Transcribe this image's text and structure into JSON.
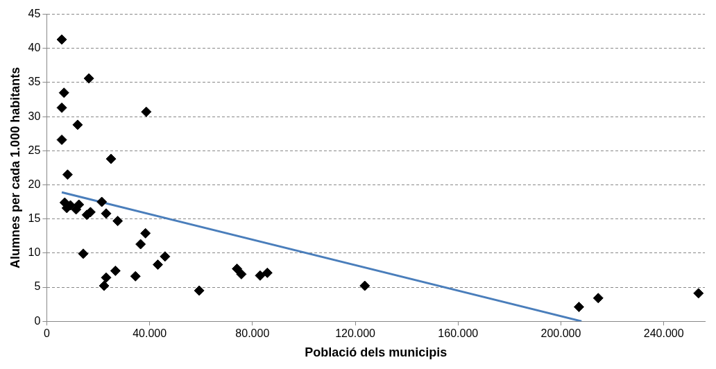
{
  "chart_data": {
    "type": "scatter",
    "xlabel": "Població dels municipis",
    "ylabel": "Alumnes per cada 1.000 habitants",
    "xlim": [
      0,
      256000
    ],
    "xticks": [
      0,
      {
        "value": 40000,
        "label": "40.000"
      },
      {
        "value": 80000,
        "label": "80.000"
      },
      {
        "value": 120000,
        "label": "120.000"
      },
      {
        "value": 160000,
        "label": "160.000"
      },
      {
        "value": 200000,
        "label": "200.000"
      },
      {
        "value": 240000,
        "label": "240.000"
      }
    ],
    "ylim": [
      0,
      45
    ],
    "yticks": [
      0,
      5,
      10,
      15,
      20,
      25,
      30,
      35,
      40,
      45
    ],
    "grid": "y",
    "legend": false,
    "series": [
      {
        "color": "#000000",
        "marker": "diamond",
        "x": [
          5850,
          6700,
          5850,
          5850,
          8100,
          16400,
          12000,
          38700,
          25000,
          7000,
          7800,
          9200,
          11400,
          12500,
          15600,
          17000,
          21400,
          23100,
          27600,
          14200,
          38400,
          36500,
          46000,
          43200,
          22300,
          23100,
          26700,
          34500,
          59300,
          74000,
          75700,
          83000,
          85800,
          123700,
          207000,
          214500,
          253500
        ],
        "values": [
          41.3,
          33.5,
          31.3,
          26.6,
          21.5,
          35.6,
          28.8,
          30.7,
          23.8,
          17.4,
          16.6,
          17.0,
          16.4,
          17.1,
          15.6,
          16.0,
          17.5,
          15.8,
          14.7,
          9.9,
          12.9,
          11.3,
          9.5,
          8.3,
          5.2,
          6.4,
          7.4,
          6.6,
          4.5,
          7.7,
          6.9,
          6.7,
          7.1,
          5.2,
          2.1,
          3.4,
          4.1
        ]
      },
      {
        "type": "line",
        "color": "#4a7ebb",
        "marker": "none",
        "line_style": "solid",
        "x": [
          5850,
          208000
        ],
        "values": [
          18.9,
          0
        ]
      }
    ]
  }
}
